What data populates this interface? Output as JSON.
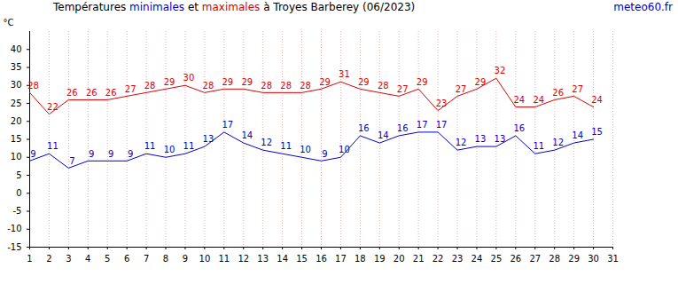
{
  "chart_data": {
    "type": "line",
    "title": "Températures minimales et maximales à Troyes Barberey (06/2023)",
    "y_label": "°C",
    "annotations": [
      "meteo60.fr"
    ],
    "x": [
      1,
      2,
      3,
      4,
      5,
      6,
      7,
      8,
      9,
      10,
      11,
      12,
      13,
      14,
      15,
      16,
      17,
      18,
      19,
      20,
      21,
      22,
      23,
      24,
      25,
      26,
      27,
      28,
      29,
      30
    ],
    "series": [
      {
        "name": "minimales",
        "color": "#0000cc",
        "values": [
          9,
          11,
          7,
          9,
          9,
          9,
          11,
          10,
          11,
          13,
          17,
          14,
          12,
          11,
          10,
          9,
          10,
          16,
          14,
          16,
          17,
          17,
          12,
          13,
          13,
          16,
          11,
          12,
          14,
          15
        ]
      },
      {
        "name": "maximales",
        "color": "#dd0000",
        "values": [
          28,
          22,
          26,
          26,
          26,
          27,
          28,
          29,
          30,
          28,
          29,
          29,
          28,
          28,
          28,
          29,
          31,
          29,
          28,
          27,
          29,
          23,
          27,
          29,
          32,
          24,
          24,
          26,
          27,
          24
        ]
      }
    ],
    "xlim": [
      1,
      31
    ],
    "xticks": [
      1,
      2,
      3,
      4,
      5,
      6,
      7,
      8,
      9,
      10,
      11,
      12,
      13,
      14,
      15,
      16,
      17,
      18,
      19,
      20,
      21,
      22,
      23,
      24,
      25,
      26,
      27,
      28,
      29,
      30,
      31
    ],
    "ylim": [
      -15,
      45
    ],
    "yticks": [
      -15,
      -10,
      -5,
      0,
      5,
      10,
      15,
      20,
      25,
      30,
      35,
      40
    ],
    "grid": true,
    "data_labels": true
  }
}
